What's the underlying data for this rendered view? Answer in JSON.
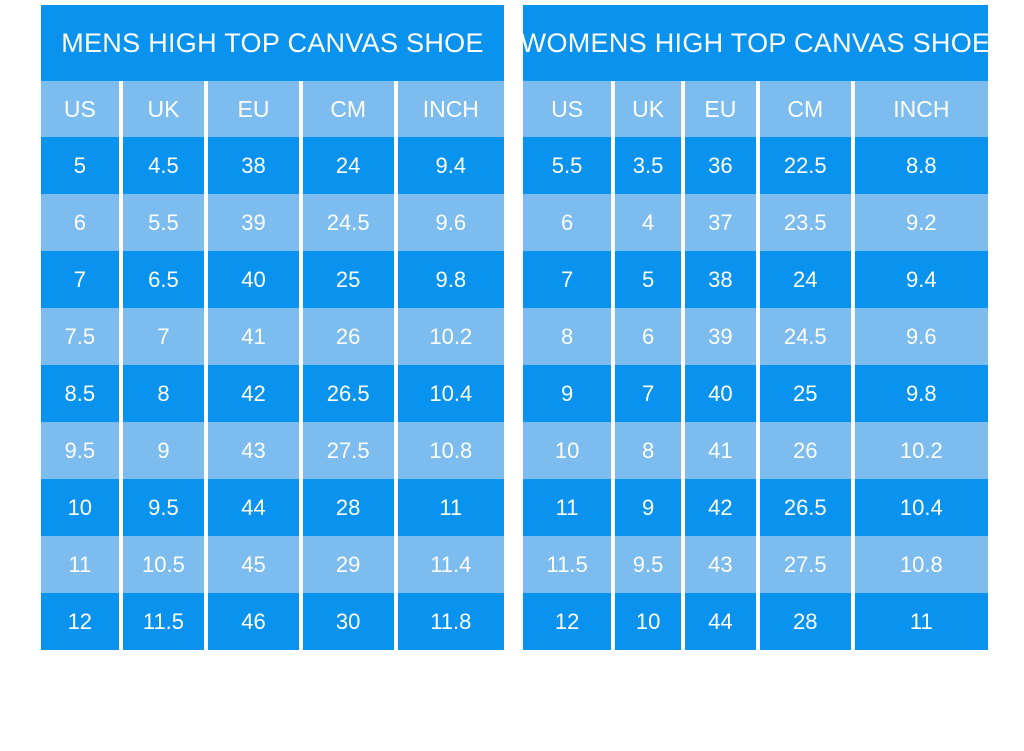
{
  "colors": {
    "primary_blue": "#0a93ee",
    "light_blue": "#7cbcee",
    "text_white": "#ffffff",
    "page_background": "#ffffff"
  },
  "chart_data": [
    {
      "type": "table",
      "title": "MENS HIGH TOP CANVAS SHOE",
      "columns": [
        "US",
        "UK",
        "EU",
        "CM",
        "INCH"
      ],
      "rows": [
        [
          "5",
          "4.5",
          "38",
          "24",
          "9.4"
        ],
        [
          "6",
          "5.5",
          "39",
          "24.5",
          "9.6"
        ],
        [
          "7",
          "6.5",
          "40",
          "25",
          "9.8"
        ],
        [
          "7.5",
          "7",
          "41",
          "26",
          "10.2"
        ],
        [
          "8.5",
          "8",
          "42",
          "26.5",
          "10.4"
        ],
        [
          "9.5",
          "9",
          "43",
          "27.5",
          "10.8"
        ],
        [
          "10",
          "9.5",
          "44",
          "28",
          "11"
        ],
        [
          "11",
          "10.5",
          "45",
          "29",
          "11.4"
        ],
        [
          "12",
          "11.5",
          "46",
          "30",
          "11.8"
        ]
      ],
      "row_stripe_pattern": "first row dark blue, alternating with light blue"
    },
    {
      "type": "table",
      "title": "WOMENS HIGH TOP CANVAS SHOE",
      "columns": [
        "US",
        "UK",
        "EU",
        "CM",
        "INCH"
      ],
      "rows": [
        [
          "5.5",
          "3.5",
          "36",
          "22.5",
          "8.8"
        ],
        [
          "6",
          "4",
          "37",
          "23.5",
          "9.2"
        ],
        [
          "7",
          "5",
          "38",
          "24",
          "9.4"
        ],
        [
          "8",
          "6",
          "39",
          "24.5",
          "9.6"
        ],
        [
          "9",
          "7",
          "40",
          "25",
          "9.8"
        ],
        [
          "10",
          "8",
          "41",
          "26",
          "10.2"
        ],
        [
          "11",
          "9",
          "42",
          "26.5",
          "10.4"
        ],
        [
          "11.5",
          "9.5",
          "43",
          "27.5",
          "10.8"
        ],
        [
          "12",
          "10",
          "44",
          "28",
          "11"
        ]
      ],
      "row_stripe_pattern": "first row dark blue, alternating with light blue"
    }
  ]
}
